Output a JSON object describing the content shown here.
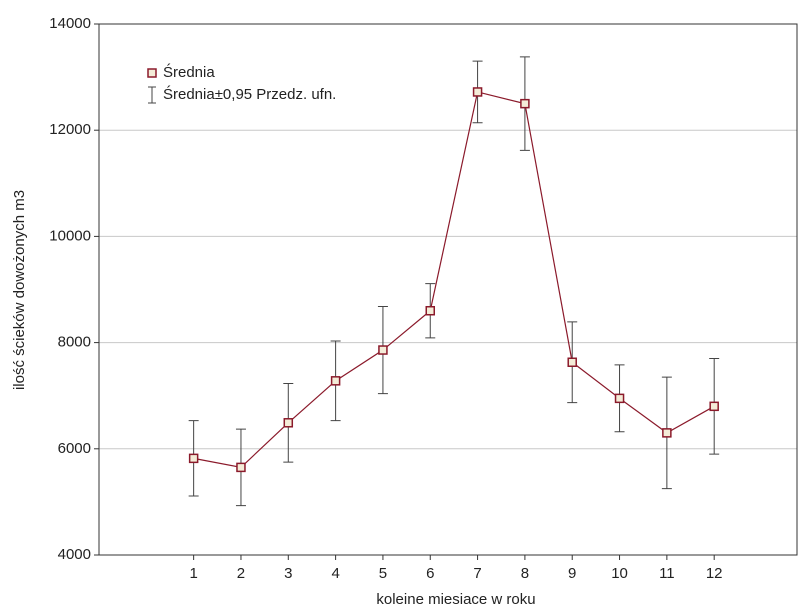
{
  "chart_data": {
    "type": "line",
    "x": [
      1,
      2,
      3,
      4,
      5,
      6,
      7,
      8,
      9,
      10,
      11,
      12
    ],
    "series": [
      {
        "name": "Średnia",
        "color": "#8b1a2b",
        "values": [
          5820,
          5650,
          6490,
          7280,
          7860,
          8600,
          12720,
          12500,
          7630,
          6950,
          6300,
          6800
        ]
      }
    ],
    "error_bars": {
      "name": "Średnia±0,95 Przedz. ufn.",
      "color": "#444444",
      "values": [
        710,
        720,
        740,
        750,
        820,
        510,
        580,
        880,
        760,
        630,
        1050,
        900
      ]
    },
    "xlabel": "koleine miesiace w roku",
    "ylabel": "ilość ścieków dowożonych m3",
    "xlim": [
      -1,
      13.75
    ],
    "xticks": [
      1,
      2,
      3,
      4,
      5,
      6,
      7,
      8,
      9,
      10,
      11,
      12
    ],
    "ylim": [
      4000,
      14000
    ],
    "yticks": [
      4000,
      6000,
      8000,
      10000,
      12000,
      14000
    ],
    "grid": true,
    "legend": "top-left"
  }
}
